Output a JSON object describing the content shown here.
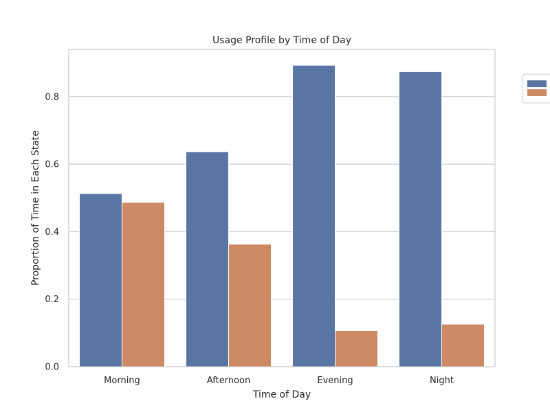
{
  "chart_data": {
    "type": "bar",
    "title": "Usage Profile by Time of Day",
    "xlabel": "Time of Day",
    "ylabel": "Proportion of Time in Each State",
    "categories": [
      "Morning",
      "Afternoon",
      "Evening",
      "Night"
    ],
    "series": [
      {
        "values": [
          0.513,
          0.637,
          0.893,
          0.874
        ],
        "color": "#5875a4"
      },
      {
        "values": [
          0.487,
          0.363,
          0.107,
          0.126
        ],
        "color": "#cc8963"
      }
    ],
    "ylim": [
      0,
      0.94
    ],
    "yticks": [
      "0.0",
      "0.2",
      "0.4",
      "0.6",
      "0.8"
    ],
    "grid": true,
    "legend_position": "outside-top-right"
  }
}
